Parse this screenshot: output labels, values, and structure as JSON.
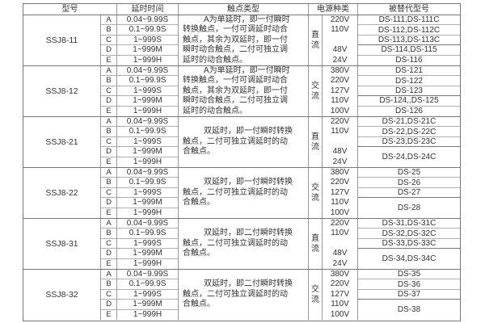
{
  "header": {
    "model": "型号",
    "delay": "延时时间",
    "contact": "触点类型",
    "power": "电源种类",
    "replaced": "被替代型号"
  },
  "colors": {
    "background": "#ffffff",
    "text": "#333333",
    "border_thin": "#b0b0b0",
    "border_heavy": "#777777"
  },
  "groups": [
    {
      "model": "SSJ8-11",
      "rows": [
        {
          "letter": "A",
          "delay": "0.04~9.99S"
        },
        {
          "letter": "B",
          "delay": "0.1~99.9S"
        },
        {
          "letter": "C",
          "delay": "1~999S"
        },
        {
          "letter": "D",
          "delay": "1~999M"
        },
        {
          "letter": "E",
          "delay": "1~999H"
        }
      ],
      "contact_lines": [
        "A为单延时，即一付瞬时",
        "转换触点，一付可调延时动合",
        "触点，其余为双延时，即一付",
        "瞬时动合触点，二付可独立调",
        "延时的动合触点。"
      ],
      "power": "直流",
      "voltages": [
        "220V",
        "110V",
        "",
        "48V",
        "24V"
      ],
      "replaced": [
        {
          "label": "DS-111,DS-111C",
          "span": 1
        },
        {
          "label": "DS-112,DS-112C",
          "span": 1
        },
        {
          "label": "DS-113,DS-113C",
          "span": 1,
          "heavy": true
        },
        {
          "label": "DS-114,DS-115",
          "span": 1
        },
        {
          "label": "DS-116",
          "span": 1
        }
      ]
    },
    {
      "model": "SSJ8-12",
      "rows": [
        {
          "letter": "A",
          "delay": "0.04~9.99S"
        },
        {
          "letter": "B",
          "delay": "0.1~99.9S"
        },
        {
          "letter": "C",
          "delay": "1~999S"
        },
        {
          "letter": "D",
          "delay": "1~999M"
        },
        {
          "letter": "E",
          "delay": "1~999H"
        }
      ],
      "contact_lines": [
        "A为单延时，即一付瞬时",
        "转换触点，一付可调延时动合",
        "触点，其余为双延时，即一付",
        "瞬时动合触点，二付可独立调",
        "延时的动合触点。"
      ],
      "power": "交流",
      "voltages": [
        "380V",
        "220V",
        "127V",
        "110V",
        "100V"
      ],
      "replaced": [
        {
          "label": "DS-121",
          "span": 1
        },
        {
          "label": "DS-122",
          "span": 1
        },
        {
          "label": "DS-123",
          "span": 1,
          "heavy": true
        },
        {
          "label": "DS-124,,DS-125",
          "span": 1
        },
        {
          "label": "DS-126",
          "span": 1
        }
      ]
    },
    {
      "model": "SSJ8-21",
      "rows": [
        {
          "letter": "A",
          "delay": "0.04~9.99S"
        },
        {
          "letter": "B",
          "delay": "0.1~99.9S"
        },
        {
          "letter": "C",
          "delay": "1~999S"
        },
        {
          "letter": "D",
          "delay": "1~999M"
        },
        {
          "letter": "E",
          "delay": "1~999H"
        }
      ],
      "contact_lines": [
        "双延时，即一付瞬时转换",
        "触点，二付可独立调延时的动",
        "合触点。"
      ],
      "power": "直流",
      "voltages": [
        "220V",
        "110V",
        "",
        "48V",
        "24V"
      ],
      "replaced": [
        {
          "label": "DS-21,DS-21C",
          "span": 1
        },
        {
          "label": "DS-22,DS-22C",
          "span": 1
        },
        {
          "label": "DS-23,DS-23C",
          "span": 1,
          "heavy": true
        },
        {
          "label": "DS-24,DS-24C",
          "span": 2
        }
      ]
    },
    {
      "model": "SSJ8-22",
      "rows": [
        {
          "letter": "A",
          "delay": "0.04~9.99S"
        },
        {
          "letter": "B",
          "delay": "0.1~99.9S"
        },
        {
          "letter": "C",
          "delay": "1~999S"
        },
        {
          "letter": "D",
          "delay": "1~999M"
        },
        {
          "letter": "E",
          "delay": "1~999H"
        }
      ],
      "contact_lines": [
        "双延时，即一付瞬时转换",
        "触点，二付可独立调延时的动",
        "合触点。"
      ],
      "power": "交流",
      "voltages": [
        "380V",
        "220V",
        "127V",
        "110V",
        "100V"
      ],
      "replaced": [
        {
          "label": "DS-25",
          "span": 1
        },
        {
          "label": "DS-26",
          "span": 1
        },
        {
          "label": "DS-27",
          "span": 1,
          "heavy": true
        },
        {
          "label": "DS-28",
          "span": 2
        }
      ]
    },
    {
      "model": "SSJ8-31",
      "rows": [
        {
          "letter": "A",
          "delay": "0.04~9.99S"
        },
        {
          "letter": "B",
          "delay": "0.1~99.9S"
        },
        {
          "letter": "C",
          "delay": "1~999S"
        },
        {
          "letter": "D",
          "delay": "1~999M"
        },
        {
          "letter": "E",
          "delay": "1~999H"
        }
      ],
      "contact_lines": [
        "双延时，即二付瞬时转换",
        "触点，二付可独立调延时的动",
        "合触点。"
      ],
      "power": "直流",
      "voltages": [
        "220V",
        "110V",
        "",
        "48V",
        "24V"
      ],
      "replaced": [
        {
          "label": "DS-31,DS-31C",
          "span": 1
        },
        {
          "label": "DS-32,DS-32C",
          "span": 1
        },
        {
          "label": "DS-33,DS-33C",
          "span": 1,
          "heavy": true
        },
        {
          "label": "DS-34,DS-34C",
          "span": 2
        }
      ]
    },
    {
      "model": "SSJ8-32",
      "rows": [
        {
          "letter": "A",
          "delay": "0.04~9.99S"
        },
        {
          "letter": "B",
          "delay": "0.1~99.9S"
        },
        {
          "letter": "C",
          "delay": "1~999S"
        },
        {
          "letter": "D",
          "delay": "1~999M"
        },
        {
          "letter": "E",
          "delay": "1~999H"
        }
      ],
      "contact_lines": [
        "双延时，即二付瞬时转换",
        "触点，二付可独立调延时的动",
        "合触点。"
      ],
      "power": "交流",
      "voltages": [
        "380V",
        "220V",
        "127V",
        "110V",
        "100V"
      ],
      "replaced": [
        {
          "label": "DS-35",
          "span": 1
        },
        {
          "label": "DS-36",
          "span": 1
        },
        {
          "label": "DS-37",
          "span": 1,
          "heavy": true
        },
        {
          "label": "DS-38",
          "span": 2
        }
      ]
    }
  ]
}
